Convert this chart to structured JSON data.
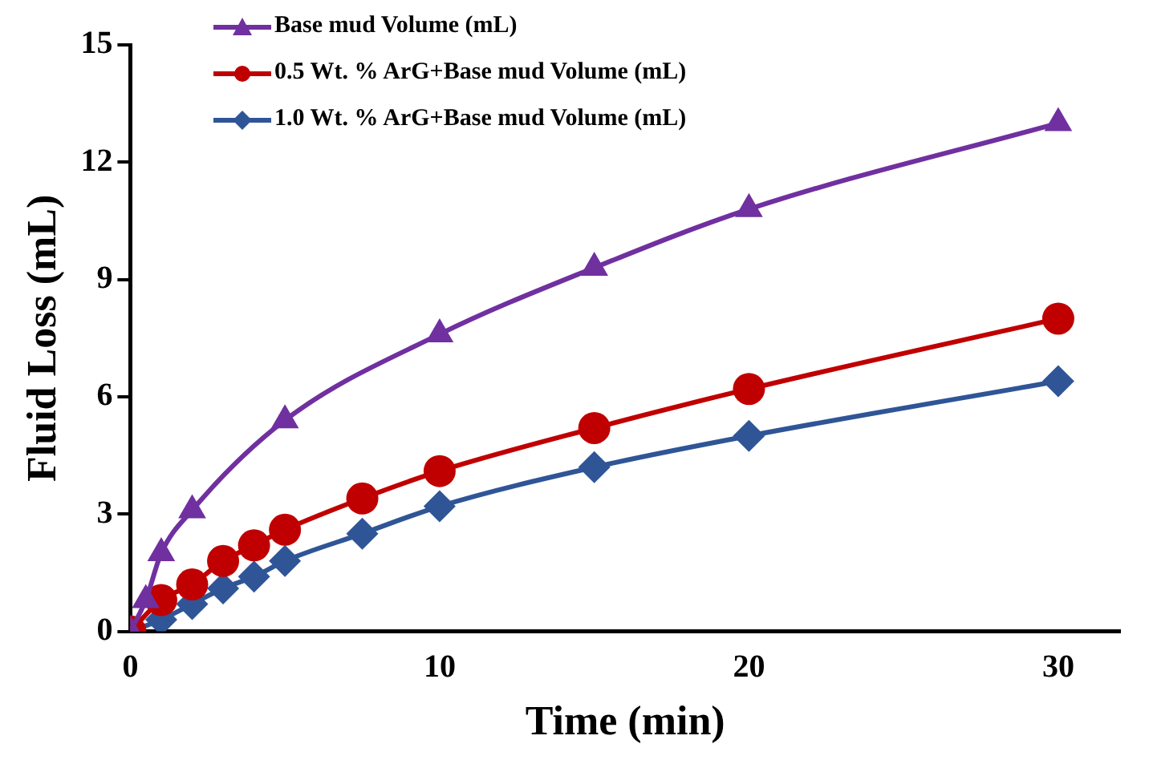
{
  "chart_data": {
    "type": "line",
    "xlabel": "Time (min)",
    "ylabel": "Fluid Loss (mL)",
    "xlim": [
      0,
      32
    ],
    "xticks": [
      0,
      10,
      20,
      30
    ],
    "ylim": [
      0,
      15
    ],
    "yticks": [
      0,
      3,
      6,
      9,
      12,
      15
    ],
    "grid": false,
    "legend": "top left",
    "line_style": "solid",
    "series": [
      {
        "name": "Base mud Volume (mL)",
        "color": "#7030a0",
        "marker": "triangle",
        "x": [
          0,
          0.5,
          1,
          2,
          5,
          10,
          15,
          20,
          30
        ],
        "values": [
          0,
          0.8,
          2.0,
          3.1,
          5.4,
          7.6,
          9.3,
          10.8,
          13.0
        ]
      },
      {
        "name": "0.5 Wt. % ArG+Base mud Volume (mL)",
        "color": "#c00000",
        "marker": "circle",
        "x": [
          0,
          1,
          2,
          3,
          4,
          5,
          7.5,
          10,
          15,
          20,
          30
        ],
        "values": [
          0,
          0.8,
          1.2,
          1.8,
          2.2,
          2.6,
          3.4,
          4.1,
          5.2,
          6.2,
          8.0
        ]
      },
      {
        "name": "1.0 Wt. % ArG+Base mud Volume (mL)",
        "color": "#2f5597",
        "marker": "diamond",
        "x": [
          0,
          1,
          2,
          3,
          4,
          5,
          7.5,
          10,
          15,
          20,
          30
        ],
        "values": [
          0,
          0.3,
          0.7,
          1.1,
          1.4,
          1.8,
          2.5,
          3.2,
          4.2,
          5.0,
          6.4
        ]
      }
    ]
  }
}
